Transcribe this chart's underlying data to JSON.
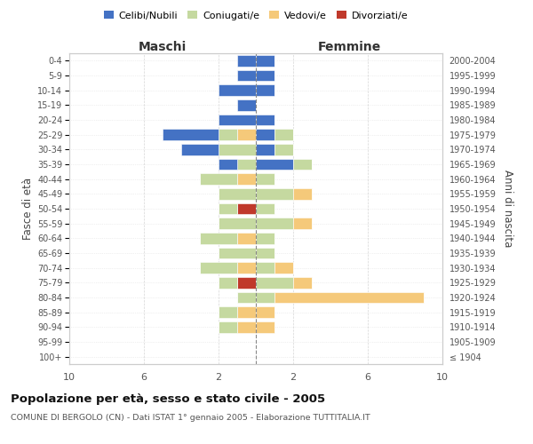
{
  "age_groups": [
    "100+",
    "95-99",
    "90-94",
    "85-89",
    "80-84",
    "75-79",
    "70-74",
    "65-69",
    "60-64",
    "55-59",
    "50-54",
    "45-49",
    "40-44",
    "35-39",
    "30-34",
    "25-29",
    "20-24",
    "15-19",
    "10-14",
    "5-9",
    "0-4"
  ],
  "birth_years": [
    "≤ 1904",
    "1905-1909",
    "1910-1914",
    "1915-1919",
    "1920-1924",
    "1925-1929",
    "1930-1934",
    "1935-1939",
    "1940-1944",
    "1945-1949",
    "1950-1954",
    "1955-1959",
    "1960-1964",
    "1965-1969",
    "1970-1974",
    "1975-1979",
    "1980-1984",
    "1985-1989",
    "1990-1994",
    "1995-1999",
    "2000-2004"
  ],
  "maschi": {
    "celibi": [
      0,
      0,
      0,
      0,
      0,
      0,
      0,
      0,
      0,
      0,
      0,
      0,
      0,
      1,
      2,
      3,
      2,
      1,
      2,
      1,
      1
    ],
    "coniugati": [
      0,
      0,
      1,
      1,
      1,
      1,
      2,
      2,
      2,
      2,
      1,
      2,
      2,
      1,
      2,
      1,
      0,
      0,
      0,
      0,
      0
    ],
    "vedovi": [
      0,
      0,
      1,
      1,
      0,
      0,
      1,
      0,
      1,
      0,
      0,
      0,
      1,
      0,
      0,
      1,
      0,
      0,
      0,
      0,
      0
    ],
    "divorziati": [
      0,
      0,
      0,
      0,
      0,
      1,
      0,
      0,
      0,
      0,
      1,
      0,
      0,
      0,
      0,
      0,
      0,
      0,
      0,
      0,
      0
    ]
  },
  "femmine": {
    "nubili": [
      0,
      0,
      0,
      0,
      0,
      0,
      0,
      0,
      0,
      0,
      0,
      0,
      0,
      2,
      1,
      1,
      1,
      0,
      1,
      1,
      1
    ],
    "coniugate": [
      0,
      0,
      0,
      0,
      1,
      2,
      1,
      1,
      1,
      2,
      1,
      2,
      1,
      1,
      1,
      1,
      0,
      0,
      0,
      0,
      0
    ],
    "vedove": [
      0,
      0,
      1,
      1,
      8,
      1,
      1,
      0,
      0,
      1,
      0,
      1,
      0,
      0,
      0,
      0,
      0,
      0,
      0,
      0,
      0
    ],
    "divorziate": [
      0,
      0,
      0,
      0,
      0,
      0,
      0,
      0,
      0,
      0,
      0,
      0,
      0,
      0,
      0,
      0,
      0,
      0,
      0,
      0,
      0
    ]
  },
  "colors": {
    "celibi_nubili": "#4472c4",
    "coniugati_e": "#c5d9a0",
    "vedovi_e": "#f5c97a",
    "divorziati_e": "#c0392b"
  },
  "title": "Popolazione per età, sesso e stato civile - 2005",
  "subtitle": "COMUNE DI BERGOLO (CN) - Dati ISTAT 1° gennaio 2005 - Elaborazione TUTTITALIA.IT",
  "maschi_label": "Maschi",
  "femmine_label": "Femmine",
  "ylabel_left": "Fasce di età",
  "ylabel_right": "Anni di nascita",
  "legend_labels": [
    "Celibi/Nubili",
    "Coniugati/e",
    "Vedovi/e",
    "Divorziati/e"
  ],
  "xlim": 10,
  "background_color": "#ffffff",
  "grid_color": "#cccccc",
  "bar_height": 0.75
}
